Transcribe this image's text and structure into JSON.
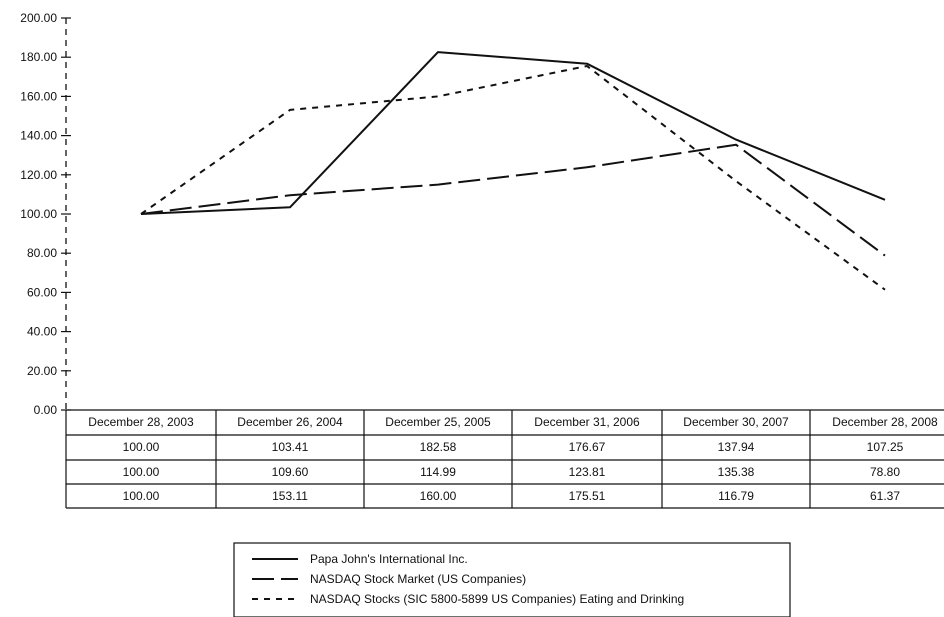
{
  "chart_data": {
    "type": "line",
    "title": "",
    "xlabel": "",
    "ylabel": "",
    "ylim": [
      0,
      200
    ],
    "y_ticks": [
      "0.00",
      "20.00",
      "40.00",
      "60.00",
      "80.00",
      "100.00",
      "120.00",
      "140.00",
      "160.00",
      "180.00",
      "200.00"
    ],
    "categories": [
      "December 28, 2003",
      "December 26, 2004",
      "December 25, 2005",
      "December 31, 2006",
      "December 30, 2007",
      "December 28, 2008"
    ],
    "series": [
      {
        "name": "Papa John's International Inc.",
        "style": "solid",
        "values": [
          100.0,
          103.41,
          182.58,
          176.67,
          137.94,
          107.25
        ],
        "labels": [
          "100.00",
          "103.41",
          "182.58",
          "176.67",
          "137.94",
          "107.25"
        ]
      },
      {
        "name": "NASDAQ Stock Market (US Companies)",
        "style": "long-dash",
        "values": [
          100.0,
          109.6,
          114.99,
          123.81,
          135.38,
          78.8
        ],
        "labels": [
          "100.00",
          "109.60",
          "114.99",
          "123.81",
          "135.38",
          "78.80"
        ]
      },
      {
        "name": "NASDAQ Stocks (SIC 5800-5899 US Companies) Eating and Drinking",
        "style": "short-dash",
        "values": [
          100.0,
          153.11,
          160.0,
          175.51,
          116.79,
          61.37
        ],
        "labels": [
          "100.00",
          "153.11",
          "160.00",
          "175.51",
          "116.79",
          "61.37"
        ]
      }
    ],
    "grid": false,
    "legend_position": "bottom"
  }
}
